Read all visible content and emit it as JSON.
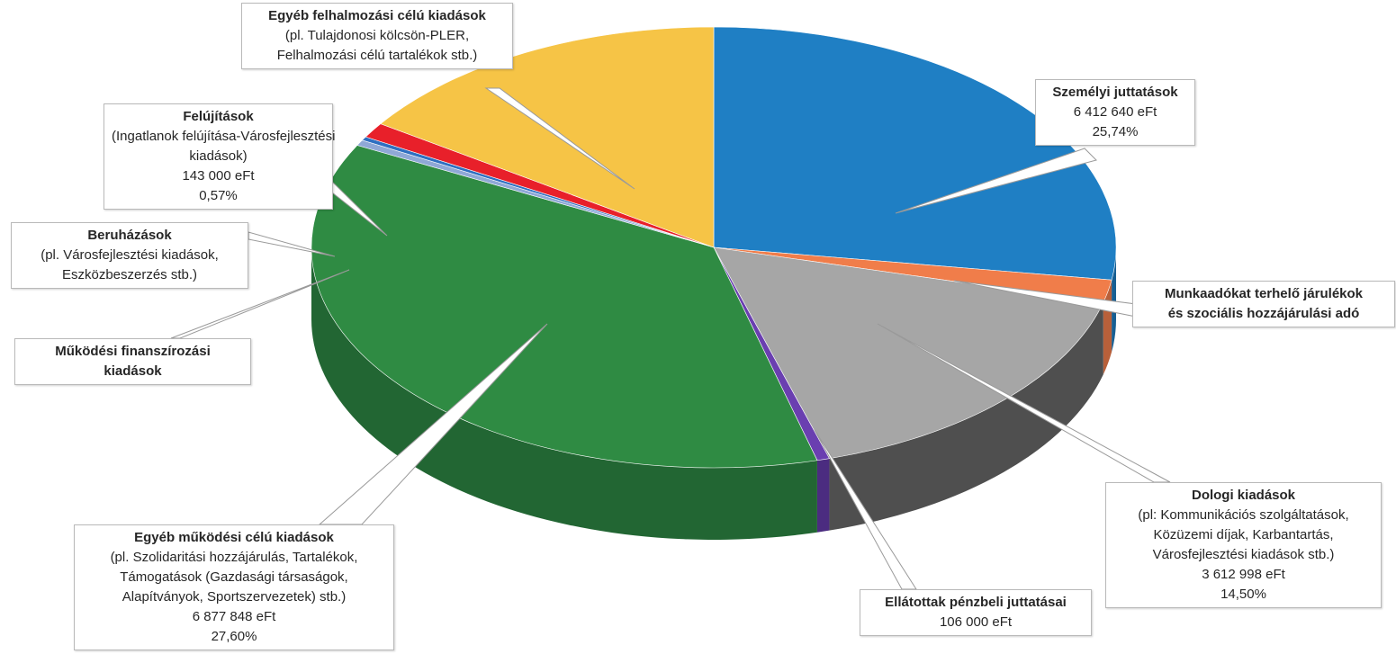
{
  "chart_data": {
    "type": "pie",
    "style": "3d-exploded-callouts",
    "slices": [
      {
        "name": "Személyi juttatások",
        "value": 6412640,
        "percent": 25.74,
        "color": "#1f7fc4"
      },
      {
        "name": "Munkaadókat terhelő járulékok és szociális hozzájárulási adó",
        "color": "#f07d4a"
      },
      {
        "name": "Dologi kiadások",
        "value": 3612998,
        "percent": 14.5,
        "color": "#a6a6a6"
      },
      {
        "name": "Ellátottak pénzbeli juttatásai",
        "value": 106000,
        "color": "#6a3fb0"
      },
      {
        "name": "Egyéb működési célú kiadások",
        "value": 6877848,
        "percent": 27.6,
        "color": "#2f8b43"
      },
      {
        "name": "Működési finanszírozási kiadások",
        "color": "#8fa8d6"
      },
      {
        "name": "Beruházások",
        "color": "#2e6fc1"
      },
      {
        "name": "Felújítások",
        "value": 143000,
        "percent": 0.57,
        "color": "#e8202a"
      },
      {
        "name": "Egyéb felhalmozási célú kiadások",
        "color": "#f6c446"
      }
    ]
  },
  "labels": {
    "szemelyi": {
      "title": "Személyi juttatások",
      "value": "6 412 640 eFt",
      "percent": "25,74%"
    },
    "munkaado": {
      "line1": "Munkaadókat terhelő járulékok",
      "line2": "és szociális hozzájárulási adó"
    },
    "dologi": {
      "title": "Dologi kiadások",
      "d1": "(pl: Kommunikációs szolgáltatások,",
      "d2": "Közüzemi díjak, Karbantartás,",
      "d3": "Városfejlesztési kiadások stb.)",
      "value": "3 612 998 eFt",
      "percent": "14,50%"
    },
    "ellatottak": {
      "title": "Ellátottak pénzbeli juttatásai",
      "value": "106 000 eFt"
    },
    "egyeb_mukodesi": {
      "title": "Egyéb működési célú kiadások",
      "d1": "(pl. Szolidaritási hozzájárulás, Tartalékok,",
      "d2": "Támogatások (Gazdasági társaságok,",
      "d3": "Alapítványok, Sportszervezetek) stb.)",
      "value": "6 877 848 eFt",
      "percent": "27,60%"
    },
    "mukodesi_fin": {
      "line1": "Működési finanszírozási",
      "line2": "kiadások"
    },
    "beruhazasok": {
      "title": "Beruházások",
      "d1": "(pl. Városfejlesztési kiadások,",
      "d2": "Eszközbeszerzés stb.)"
    },
    "felujitasok": {
      "title": "Felújítások",
      "d1": "(Ingatlanok felújítása-Városfejlesztési",
      "d2": "kiadások)",
      "value": "143 000 eFt",
      "percent": "0,57%"
    },
    "egyeb_felhalm": {
      "title": "Egyéb felhalmozási célú kiadások",
      "d1": "(pl. Tulajdonosi kölcsön-PLER,",
      "d2": "Felhalmozási célú tartalékok stb.)"
    }
  }
}
